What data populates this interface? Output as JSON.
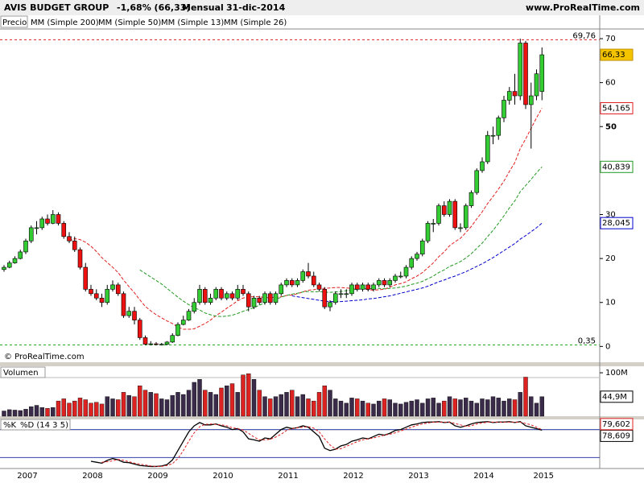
{
  "chart_data": [
    {
      "type": "candlestick",
      "title": "AVIS BUDGET GROUP",
      "change": "-1,68% (66,33)",
      "period": "Mensual",
      "date": "31-dic-2014",
      "site": "www.ProRealTime.com",
      "legend_label": "Precio",
      "copyright": "© ProRealTime.com",
      "up_color": "#33cc33",
      "down_color": "#ee1111",
      "open": [
        17.5,
        18,
        19,
        20,
        21.5,
        24,
        27,
        27,
        29,
        28,
        30,
        28,
        25,
        24,
        22,
        18,
        13,
        12,
        11,
        10,
        13,
        14,
        12,
        7,
        8,
        6,
        2,
        0.5,
        0.6,
        0.5,
        0.5,
        1,
        2.5,
        5,
        6,
        8,
        10,
        13,
        10,
        11,
        13,
        11,
        12,
        11,
        13,
        12,
        9,
        11,
        10,
        12,
        10,
        12,
        14,
        15,
        14,
        15,
        17,
        16,
        14,
        13,
        9,
        10,
        12,
        12,
        12,
        14,
        13,
        14,
        13,
        14,
        15,
        14,
        15,
        16,
        16,
        18,
        20,
        21,
        24,
        28,
        28,
        32,
        30,
        33,
        27,
        27,
        32,
        35,
        40,
        42,
        48,
        48,
        52,
        56,
        58,
        57,
        69,
        55,
        57,
        58
      ],
      "high": [
        18.5,
        19.5,
        20.5,
        22,
        24.5,
        27.5,
        28.5,
        29.5,
        30,
        31,
        30.5,
        28.5,
        26,
        25,
        22.5,
        19,
        14,
        13,
        12,
        14,
        15,
        14.5,
        12.5,
        9,
        9,
        6.5,
        2.5,
        1.2,
        1,
        0.8,
        1.2,
        3,
        5.5,
        7,
        8.5,
        11,
        14,
        13.5,
        12,
        13.5,
        13.5,
        12.5,
        12.5,
        14,
        14,
        12.5,
        11.5,
        11.5,
        12.5,
        12.5,
        12.5,
        14.5,
        15.5,
        15.5,
        15.5,
        17.5,
        19,
        17,
        14.5,
        13.5,
        10.5,
        12.5,
        13,
        13,
        14.5,
        14.5,
        14.5,
        14.5,
        14.5,
        15.5,
        15.5,
        15.5,
        16.5,
        17,
        18.5,
        20.5,
        21.5,
        24.5,
        28.5,
        29,
        32.5,
        33,
        33.5,
        33.5,
        28,
        32.5,
        35.5,
        40.5,
        43,
        49,
        50,
        52.5,
        57,
        59,
        62,
        70,
        69.5,
        60,
        63,
        68
      ],
      "low": [
        17,
        17.8,
        18.8,
        19.8,
        21,
        23.5,
        25.5,
        26.5,
        27.5,
        27.8,
        27.5,
        24.5,
        23.5,
        21.5,
        17.5,
        12.5,
        11.5,
        10.5,
        9,
        9.5,
        12.5,
        11.5,
        6.5,
        6.5,
        5,
        1.5,
        0.3,
        0.3,
        0.3,
        0.2,
        0.3,
        0.8,
        2.3,
        4.8,
        5.8,
        7.5,
        9.5,
        9.5,
        9.5,
        10.5,
        10.5,
        10.5,
        10.5,
        10.5,
        11.5,
        8,
        8.5,
        9.5,
        9.5,
        9.5,
        9.5,
        11.5,
        13.5,
        13.5,
        13.5,
        14.5,
        15.5,
        13.5,
        12.5,
        8.5,
        8,
        9.5,
        11,
        11,
        11.5,
        12.5,
        12.5,
        12.5,
        12.5,
        13.5,
        13.5,
        13.5,
        14.5,
        15.5,
        15.5,
        17.5,
        19.5,
        20.5,
        23.5,
        26,
        27.5,
        29.5,
        29.5,
        26.5,
        26,
        26.5,
        31.5,
        34.5,
        39.5,
        41.5,
        46,
        47,
        51,
        55,
        55,
        56,
        54,
        45,
        56,
        56
      ],
      "close": [
        18,
        19,
        20,
        21.5,
        24,
        27,
        27,
        29,
        28,
        30,
        28,
        25,
        24,
        22,
        18,
        13,
        12,
        11,
        10,
        13,
        14,
        12,
        7,
        8,
        6,
        2,
        0.5,
        0.6,
        0.5,
        0.5,
        1,
        2.5,
        5,
        6,
        8,
        10,
        13,
        10,
        11,
        13,
        11,
        12,
        11,
        13,
        12,
        9,
        11,
        10,
        12,
        10,
        12,
        14,
        15,
        14,
        15,
        17,
        16,
        14,
        13,
        9,
        10,
        12,
        12,
        12,
        14,
        13,
        14,
        13,
        14,
        15,
        14,
        15,
        16,
        16,
        18,
        20,
        21,
        24,
        28,
        28,
        32,
        30,
        33,
        27,
        27,
        32,
        35,
        40,
        42,
        48,
        48,
        52,
        56,
        58,
        57,
        69,
        55,
        57,
        62,
        66.33
      ],
      "close_label": {
        "value": 66.33,
        "label": "66,33"
      },
      "ylim": [
        -0.3,
        72.2
      ],
      "yticks": [
        0,
        10,
        20,
        30,
        50,
        60,
        70
      ],
      "reference_lines": [
        {
          "value": 69.76,
          "label": "69,76",
          "color": "#e02020"
        },
        {
          "value": 0.35,
          "label": "0,35",
          "color": "#22aa22"
        }
      ],
      "series": [
        {
          "name": "MM (Simple 200)",
          "color": "#000000"
        },
        {
          "name": "MM (Simple 50)",
          "color": "#0000cc",
          "values": [
            null,
            null,
            null,
            null,
            null,
            null,
            null,
            null,
            null,
            null,
            null,
            null,
            null,
            null,
            null,
            null,
            null,
            null,
            null,
            null,
            null,
            null,
            null,
            null,
            null,
            null,
            null,
            null,
            null,
            null,
            null,
            null,
            null,
            null,
            null,
            null,
            null,
            null,
            null,
            null,
            null,
            null,
            null,
            null,
            null,
            null,
            null,
            null,
            null,
            null,
            null,
            null,
            null,
            11.5,
            11.3,
            11.1,
            10.9,
            10.7,
            10.5,
            10.3,
            10.2,
            10.2,
            10.2,
            10.3,
            10.4,
            10.5,
            10.6,
            10.8,
            10.9,
            11.1,
            11.3,
            11.5,
            11.8,
            12.1,
            12.4,
            12.7,
            13.0,
            13.3,
            13.7,
            14.2,
            14.7,
            15.1,
            15.6,
            16.0,
            16.5,
            17.0,
            17.6,
            18.2,
            18.8,
            19.5,
            20.2,
            21.0,
            21.8,
            22.6,
            23.4,
            24.4,
            25.2,
            26.1,
            27.0,
            28.045
          ],
          "last_label": {
            "value": 28.045,
            "label": "28,045"
          }
        },
        {
          "name": "MM (Simple 13)",
          "color": "#e02020",
          "values": [
            null,
            null,
            null,
            null,
            null,
            null,
            null,
            null,
            null,
            null,
            null,
            null,
            24,
            24.5,
            24.3,
            23.7,
            22.8,
            21.6,
            20.2,
            19.1,
            18.0,
            16.8,
            15.1,
            13.6,
            12.2,
            10.6,
            9.1,
            8.1,
            7.2,
            6.5,
            5.8,
            5.2,
            4.4,
            3.9,
            3.9,
            4.0,
            4.6,
            5.2,
            6.0,
            7.0,
            7.8,
            8.7,
            9.5,
            10.4,
            11.0,
            11.3,
            11.3,
            11.3,
            11.1,
            11.1,
            11.2,
            11.3,
            11.6,
            11.7,
            12.0,
            12.4,
            12.8,
            12.9,
            13.2,
            13.2,
            13.3,
            13.4,
            13.4,
            13.3,
            13.2,
            13.1,
            13.1,
            12.9,
            12.8,
            12.9,
            13.0,
            13.5,
            14.0,
            14.3,
            14.7,
            15.4,
            16.0,
            16.8,
            17.9,
            19.0,
            20.4,
            21.5,
            22.9,
            23.8,
            24.6,
            25.9,
            27.3,
            29.0,
            30.6,
            32.5,
            34.1,
            35.8,
            37.6,
            39.8,
            41.8,
            45.0,
            47.2,
            49.6,
            52.0,
            54.165
          ],
          "last_label": {
            "value": 54.165,
            "label": "54,165"
          }
        },
        {
          "name": "MM (Simple 26)",
          "color": "#229922",
          "values": [
            null,
            null,
            null,
            null,
            null,
            null,
            null,
            null,
            null,
            null,
            null,
            null,
            null,
            null,
            null,
            null,
            null,
            null,
            null,
            null,
            null,
            null,
            null,
            null,
            null,
            17.4,
            16.6,
            15.8,
            15.0,
            14.2,
            13.2,
            12.2,
            11.2,
            10.3,
            9.5,
            8.8,
            8.3,
            7.6,
            7.2,
            6.9,
            6.8,
            6.9,
            7.1,
            7.5,
            8.0,
            8.4,
            8.8,
            9.4,
            9.9,
            10.3,
            10.7,
            11.2,
            11.6,
            11.9,
            12.1,
            12.4,
            12.5,
            12.4,
            12.5,
            12.3,
            12.3,
            12.4,
            12.5,
            12.7,
            12.9,
            13.0,
            13.1,
            13.1,
            13.2,
            13.2,
            13.1,
            13.2,
            13.3,
            13.5,
            13.7,
            14.1,
            14.4,
            14.8,
            15.4,
            16.0,
            16.8,
            17.4,
            18.2,
            18.7,
            19.3,
            20.1,
            21.1,
            22.3,
            23.5,
            25.0,
            26.4,
            28.0,
            29.7,
            31.5,
            33.1,
            35.2,
            36.6,
            38.0,
            39.5,
            40.839
          ],
          "last_label": {
            "value": 40.839,
            "label": "40,839"
          }
        }
      ]
    },
    {
      "type": "bar",
      "title": "Volumen",
      "values": [
        12,
        15,
        14,
        13,
        16,
        22,
        25,
        20,
        18,
        20,
        35,
        40,
        30,
        35,
        42,
        38,
        30,
        32,
        28,
        45,
        40,
        38,
        55,
        48,
        45,
        70,
        60,
        55,
        52,
        40,
        38,
        48,
        55,
        50,
        60,
        78,
        85,
        60,
        55,
        50,
        65,
        70,
        75,
        55,
        95,
        98,
        85,
        60,
        45,
        40,
        45,
        50,
        55,
        60,
        45,
        50,
        40,
        35,
        55,
        70,
        60,
        40,
        35,
        30,
        42,
        40,
        35,
        30,
        28,
        35,
        40,
        38,
        30,
        28,
        32,
        35,
        38,
        30,
        40,
        42,
        30,
        35,
        45,
        40,
        38,
        42,
        35,
        30,
        40,
        38,
        45,
        42,
        35,
        40,
        38,
        55,
        90,
        45,
        30,
        44.9
      ],
      "ylim": [
        0,
        115
      ],
      "yticks": [
        {
          "value": 100,
          "label": "100M"
        }
      ],
      "last_label": {
        "value": 44.9,
        "label": "44,9M"
      }
    },
    {
      "type": "line",
      "categories": [
        null,
        null,
        null,
        null,
        "2007",
        null,
        null,
        null,
        null,
        null,
        null,
        null,
        null,
        null,
        null,
        null,
        "2008",
        null,
        null,
        null,
        null,
        null,
        null,
        null,
        null,
        null,
        null,
        null,
        "2009",
        null,
        null,
        null,
        null,
        null,
        null,
        null,
        null,
        null,
        null,
        null,
        "2010",
        null,
        null,
        null,
        null,
        null,
        null,
        null,
        null,
        null,
        null,
        null,
        "2011",
        null,
        null,
        null,
        null,
        null,
        null,
        null,
        null,
        null,
        null,
        null,
        "2012",
        null,
        null,
        null,
        null,
        null,
        null,
        null,
        null,
        null,
        null,
        null,
        "2013",
        null,
        null,
        null,
        null,
        null,
        null,
        null,
        null,
        null,
        null,
        null,
        "2014",
        null,
        null,
        null,
        null,
        null,
        null,
        null,
        null,
        null,
        null,
        "2015"
      ],
      "ylim": [
        0,
        100
      ],
      "levels": [
        80,
        20
      ],
      "series": [
        {
          "name": "%K",
          "color": "#000000",
          "values": [
            null,
            null,
            null,
            null,
            null,
            null,
            null,
            null,
            null,
            null,
            null,
            null,
            null,
            null,
            null,
            null,
            12,
            10,
            8,
            14,
            18,
            15,
            10,
            9,
            6,
            3,
            2,
            1,
            1,
            2,
            5,
            15,
            35,
            55,
            75,
            88,
            95,
            90,
            90,
            92,
            88,
            85,
            80,
            82,
            75,
            60,
            58,
            55,
            62,
            60,
            70,
            80,
            85,
            82,
            84,
            88,
            85,
            75,
            65,
            40,
            35,
            38,
            45,
            48,
            55,
            58,
            62,
            60,
            65,
            70,
            68,
            72,
            78,
            80,
            85,
            90,
            92,
            95,
            96,
            96,
            97,
            95,
            96,
            88,
            85,
            88,
            92,
            95,
            96,
            97,
            95,
            96,
            96,
            97,
            95,
            97,
            88,
            85,
            82,
            78.609
          ],
          "last_label": {
            "value": 78.609,
            "label": "78,609"
          }
        },
        {
          "name": "%D (14 3 5)",
          "color": "#e02020",
          "values": [
            null,
            null,
            null,
            null,
            null,
            null,
            null,
            null,
            null,
            null,
            null,
            null,
            null,
            null,
            null,
            null,
            null,
            null,
            10,
            11,
            13,
            16,
            14,
            11,
            8,
            6,
            4,
            2,
            1,
            1,
            3,
            7,
            18,
            35,
            55,
            73,
            86,
            91,
            92,
            91,
            90,
            88,
            84,
            82,
            79,
            72,
            64,
            58,
            58,
            59,
            64,
            70,
            78,
            82,
            84,
            85,
            86,
            83,
            75,
            60,
            47,
            38,
            39,
            44,
            49,
            54,
            58,
            60,
            62,
            65,
            68,
            70,
            73,
            77,
            81,
            85,
            89,
            92,
            94,
            96,
            96,
            96,
            96,
            93,
            90,
            87,
            88,
            92,
            94,
            96,
            96,
            96,
            96,
            96,
            96,
            96,
            93,
            90,
            85,
            79.602
          ],
          "last_label": {
            "value": 79.602,
            "label": "79,602"
          }
        }
      ]
    }
  ]
}
